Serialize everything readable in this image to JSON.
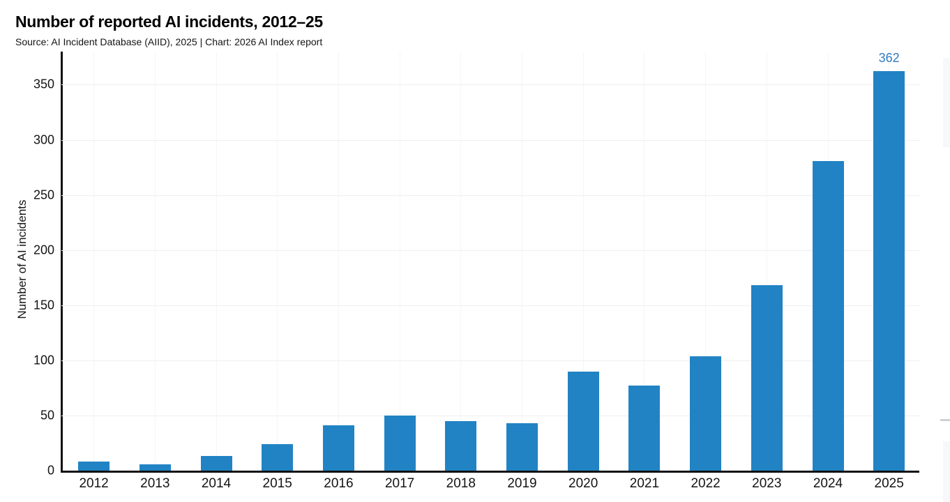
{
  "header": {
    "title": "Number of reported AI incidents, 2012–25",
    "subtitle": "Source: AI Incident Database (AIID), 2025 | Chart: 2026 AI Index report"
  },
  "chart_data": {
    "type": "bar",
    "title": "Number of reported AI incidents, 2012–25",
    "subtitle": "Source: AI Incident Database (AIID), 2025 | Chart: 2026 AI Index report",
    "categories": [
      "2012",
      "2013",
      "2014",
      "2015",
      "2016",
      "2017",
      "2018",
      "2019",
      "2020",
      "2021",
      "2022",
      "2023",
      "2024",
      "2025"
    ],
    "values": [
      8,
      6,
      13,
      24,
      41,
      50,
      45,
      43,
      90,
      77,
      104,
      168,
      281,
      362
    ],
    "xlabel": "",
    "ylabel": "Number of AI incidents",
    "ylim": [
      0,
      380
    ],
    "yticks": [
      0,
      50,
      100,
      150,
      200,
      250,
      300,
      350
    ],
    "grid": true,
    "legend": "none",
    "bar_color": "#2183C4",
    "bar_labels": {
      "2025": "362"
    },
    "bar_label_color": "#2E7CC0"
  }
}
